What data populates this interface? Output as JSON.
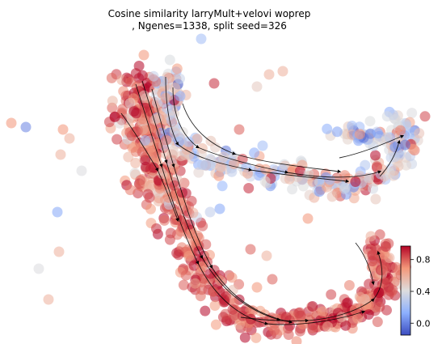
{
  "chart_data": {
    "type": "scatter",
    "title": "Cosine similarity larryMult+velovi woprep\n, Ngenes=1338, split seed=326",
    "title_lines": [
      "Cosine similarity larryMult+velovi woprep",
      ", Ngenes=1338, split seed=326"
    ],
    "xlabel": "",
    "ylabel": "",
    "axes_visible": false,
    "overlay": "velocity streamlines with arrowheads",
    "colormap": "coolwarm",
    "colors": {
      "low": "#3b4cc0",
      "mid": "#dddddd",
      "high": "#b40426"
    },
    "colorbar": {
      "ticks": [
        0.0,
        0.4,
        0.8
      ],
      "tick_labels": [
        "0.0",
        "0.4",
        "0.8"
      ],
      "range": [
        -0.15,
        0.97
      ],
      "placement": "bottom-right"
    }
  }
}
